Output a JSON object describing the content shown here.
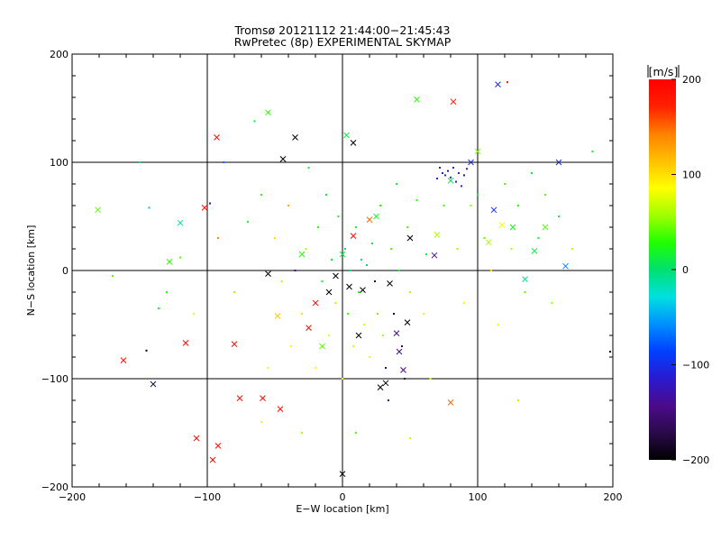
{
  "chart_data": {
    "type": "scatter",
    "title": "Tromsø 20121112 21:44:00−21:45:43",
    "subtitle": "RwPretec (8p) EXPERIMENTAL SKYMAP",
    "xlabel": "E−W location [km]",
    "ylabel": "N−S location [km]",
    "xlim": [
      -200,
      200
    ],
    "ylim": [
      -200,
      200
    ],
    "x_ticks": [
      -200,
      -100,
      0,
      100,
      200
    ],
    "y_ticks": [
      -200,
      -100,
      0,
      100,
      200
    ],
    "x_tick_labels": [
      "−200",
      "−100",
      "0",
      "100",
      "200"
    ],
    "y_tick_labels": [
      "−200",
      "−100",
      "0",
      "100",
      "200"
    ],
    "grid": true,
    "colorbar": {
      "label": "[m/s]",
      "range": [
        -200,
        200
      ],
      "ticks": [
        200,
        100,
        0,
        -100,
        -200
      ],
      "tick_labels": [
        "200",
        "100",
        "0",
        "−100",
        "−200"
      ],
      "colormap": [
        "#000000",
        "#2a0a4a",
        "#4b0b8a",
        "#2a1ad0",
        "#0040ff",
        "#0090ff",
        "#00e0e0",
        "#00e070",
        "#20ff00",
        "#a0ff00",
        "#ffff00",
        "#ffc000",
        "#ff8000",
        "#ff2000",
        "#ff0000"
      ]
    },
    "series": [
      {
        "marker": "x",
        "points": [
          [
            -181,
            56,
            40
          ],
          [
            -162,
            -83,
            190
          ],
          [
            -140,
            -105,
            -175
          ],
          [
            -128,
            8,
            30
          ],
          [
            -120,
            44,
            -10
          ],
          [
            -116,
            -67,
            190
          ],
          [
            -108,
            -155,
            190
          ],
          [
            -102,
            58,
            190
          ],
          [
            -96,
            -175,
            190
          ],
          [
            -92,
            -162,
            190
          ],
          [
            -93,
            123,
            190
          ],
          [
            -80,
            -68,
            190
          ],
          [
            -76,
            -118,
            190
          ],
          [
            -59,
            -118,
            190
          ],
          [
            -55,
            146,
            30
          ],
          [
            -55,
            -3,
            -210
          ],
          [
            -48,
            -42,
            110
          ],
          [
            -44,
            103,
            -210
          ],
          [
            -35,
            123,
            -210
          ],
          [
            -30,
            15,
            30
          ],
          [
            -25,
            -53,
            190
          ],
          [
            -20,
            -30,
            180
          ],
          [
            -15,
            -70,
            40
          ],
          [
            -10,
            -20,
            -210
          ],
          [
            -5,
            -5,
            -210
          ],
          [
            0,
            15,
            10
          ],
          [
            3,
            125,
            10
          ],
          [
            5,
            -15,
            -210
          ],
          [
            8,
            32,
            190
          ],
          [
            8,
            118,
            -210
          ],
          [
            12,
            -60,
            -210
          ],
          [
            15,
            -18,
            -200
          ],
          [
            20,
            47,
            150
          ],
          [
            25,
            50,
            20
          ],
          [
            28,
            -108,
            -210
          ],
          [
            32,
            -104,
            -210
          ],
          [
            35,
            -12,
            -210
          ],
          [
            40,
            -58,
            -150
          ],
          [
            42,
            -75,
            -150
          ],
          [
            45,
            -92,
            -150
          ],
          [
            48,
            -48,
            -210
          ],
          [
            50,
            30,
            -210
          ],
          [
            55,
            158,
            30
          ],
          [
            68,
            14,
            -140
          ],
          [
            70,
            33,
            60
          ],
          [
            80,
            83,
            10
          ],
          [
            82,
            156,
            190
          ],
          [
            95,
            100,
            -100
          ],
          [
            100,
            110,
            50
          ],
          [
            108,
            26,
            60
          ],
          [
            112,
            56,
            -100
          ],
          [
            115,
            172,
            -100
          ],
          [
            118,
            42,
            80
          ],
          [
            126,
            40,
            20
          ],
          [
            135,
            -8,
            -10
          ],
          [
            142,
            18,
            10
          ],
          [
            150,
            40,
            40
          ],
          [
            160,
            100,
            -100
          ],
          [
            165,
            4,
            -60
          ],
          [
            80,
            -122,
            150
          ],
          [
            0,
            -188,
            -210
          ],
          [
            -46,
            -128,
            190
          ]
        ]
      },
      {
        "marker": "dot",
        "points": [
          [
            -150,
            100,
            -10
          ],
          [
            -143,
            58,
            -40
          ],
          [
            -145,
            -74,
            -210
          ],
          [
            -136,
            -35,
            20
          ],
          [
            -120,
            12,
            40
          ],
          [
            -110,
            -40,
            80
          ],
          [
            -98,
            62,
            -150
          ],
          [
            -92,
            30,
            140
          ],
          [
            -88,
            100,
            -70
          ],
          [
            -80,
            -20,
            60
          ],
          [
            -70,
            45,
            20
          ],
          [
            -65,
            138,
            10
          ],
          [
            -60,
            70,
            30
          ],
          [
            -55,
            -90,
            80
          ],
          [
            -50,
            30,
            100
          ],
          [
            -45,
            -10,
            60
          ],
          [
            -40,
            60,
            120
          ],
          [
            -38,
            -70,
            90
          ],
          [
            -35,
            0,
            -140
          ],
          [
            -30,
            -40,
            100
          ],
          [
            -27,
            20,
            60
          ],
          [
            -25,
            95,
            20
          ],
          [
            -20,
            -90,
            90
          ],
          [
            -18,
            40,
            30
          ],
          [
            -15,
            -10,
            20
          ],
          [
            -12,
            70,
            10
          ],
          [
            -10,
            -60,
            80
          ],
          [
            -8,
            10,
            10
          ],
          [
            -5,
            -30,
            60
          ],
          [
            -3,
            50,
            20
          ],
          [
            0,
            -100,
            90
          ],
          [
            2,
            20,
            0
          ],
          [
            4,
            -40,
            40
          ],
          [
            6,
            0,
            -10
          ],
          [
            8,
            -70,
            70
          ],
          [
            10,
            40,
            20
          ],
          [
            12,
            -20,
            30
          ],
          [
            14,
            10,
            10
          ],
          [
            16,
            -50,
            80
          ],
          [
            18,
            5,
            0
          ],
          [
            20,
            -80,
            90
          ],
          [
            22,
            25,
            10
          ],
          [
            24,
            -10,
            -180
          ],
          [
            26,
            -40,
            50
          ],
          [
            28,
            60,
            30
          ],
          [
            30,
            -60,
            60
          ],
          [
            32,
            -90,
            -160
          ],
          [
            34,
            -120,
            -150
          ],
          [
            36,
            20,
            40
          ],
          [
            38,
            -40,
            -180
          ],
          [
            40,
            80,
            20
          ],
          [
            42,
            0,
            20
          ],
          [
            44,
            -70,
            -170
          ],
          [
            46,
            -100,
            -160
          ],
          [
            48,
            40,
            40
          ],
          [
            50,
            -20,
            60
          ],
          [
            55,
            65,
            30
          ],
          [
            60,
            -40,
            90
          ],
          [
            62,
            15,
            20
          ],
          [
            65,
            -100,
            80
          ],
          [
            70,
            85,
            -100
          ],
          [
            72,
            95,
            -110
          ],
          [
            74,
            90,
            -120
          ],
          [
            76,
            88,
            -100
          ],
          [
            78,
            92,
            -140
          ],
          [
            80,
            86,
            -110
          ],
          [
            82,
            95,
            -100
          ],
          [
            84,
            82,
            -120
          ],
          [
            86,
            90,
            -110
          ],
          [
            88,
            78,
            -100
          ],
          [
            90,
            88,
            -150
          ],
          [
            92,
            94,
            -110
          ],
          [
            75,
            60,
            40
          ],
          [
            85,
            20,
            60
          ],
          [
            90,
            -30,
            80
          ],
          [
            95,
            60,
            50
          ],
          [
            100,
            70,
            20
          ],
          [
            105,
            30,
            40
          ],
          [
            110,
            0,
            100
          ],
          [
            115,
            -50,
            80
          ],
          [
            120,
            80,
            40
          ],
          [
            125,
            20,
            60
          ],
          [
            130,
            60,
            30
          ],
          [
            135,
            -20,
            40
          ],
          [
            140,
            90,
            10
          ],
          [
            145,
            30,
            20
          ],
          [
            150,
            70,
            40
          ],
          [
            155,
            -30,
            50
          ],
          [
            160,
            50,
            10
          ],
          [
            170,
            20,
            60
          ],
          [
            185,
            110,
            20
          ],
          [
            198,
            -75,
            -210
          ],
          [
            122,
            174,
            190
          ],
          [
            -60,
            -140,
            80
          ],
          [
            -30,
            -150,
            60
          ],
          [
            10,
            -150,
            40
          ],
          [
            50,
            -155,
            100
          ],
          [
            130,
            -120,
            60
          ],
          [
            -130,
            -20,
            30
          ],
          [
            -170,
            -5,
            40
          ]
        ]
      }
    ]
  }
}
